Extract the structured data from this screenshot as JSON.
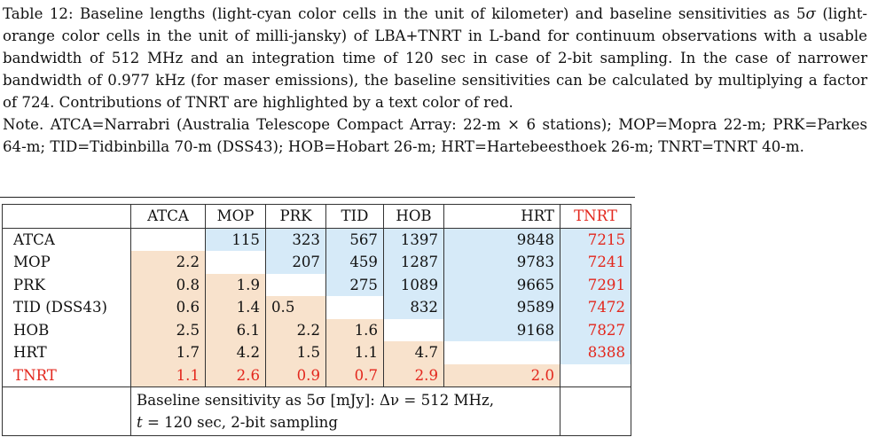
{
  "caption": {
    "label": "Table 12:",
    "text_1": " Baseline lengths (light-cyan color cells in the unit of kilometer) and baseline sensitivities as 5",
    "sigma": "σ",
    "text_2": " (light-orange color cells in the unit of milli-jansky) of LBA+TNRT in L-band for continuum observations with a usable bandwidth of 512 MHz and an integration time of 120 sec in case of 2-bit sampling. In the case of narrower bandwidth of 0.977 kHz (for maser emissions), the baseline sensitivities can be calculated by multiplying a factor of 724. Contributions of TNRT are highlighted by a text color of red.",
    "note": "Note. ATCA=Narrabri (Australia Telescope Compact Array: 22-m × 6 stations); MOP=Mopra 22-m; PRK=Parkes 64-m; TID=Tidbinbilla 70-m (DSS43); HOB=Hobart 26-m; HRT=Hartebeesthoek 26-m; TNRT=TNRT 40-m."
  },
  "table": {
    "columns": [
      "ATCA",
      "MOP",
      "PRK",
      "TID",
      "HOB",
      "HRT",
      "TNRT"
    ],
    "rows": [
      {
        "label": "ATCA",
        "cells": [
          "",
          "115",
          "323",
          "567",
          "1397",
          "9848",
          "7215"
        ]
      },
      {
        "label": "MOP",
        "cells": [
          "2.2",
          "",
          "207",
          "459",
          "1287",
          "9783",
          "7241"
        ]
      },
      {
        "label": "PRK",
        "cells": [
          "0.8",
          "1.9",
          "",
          "275",
          "1089",
          "9665",
          "7291"
        ]
      },
      {
        "label": "TID (DSS43)",
        "cells": [
          "0.6",
          "1.4",
          "0.5",
          "",
          "832",
          "9589",
          "7472"
        ]
      },
      {
        "label": "HOB",
        "cells": [
          "2.5",
          "6.1",
          "2.2",
          "1.6",
          "",
          "9168",
          "7827"
        ]
      },
      {
        "label": "HRT",
        "cells": [
          "1.7",
          "4.2",
          "1.5",
          "1.1",
          "4.7",
          "",
          "8388"
        ]
      },
      {
        "label": "TNRT",
        "cells": [
          "1.1",
          "2.6",
          "0.9",
          "0.7",
          "2.9",
          "2.0",
          ""
        ]
      }
    ],
    "footnote_line1": "Baseline sensitivity as 5σ [mJy]: Δν = 512 MHz,",
    "footnote_t": "t",
    "footnote_line2": " = 120 sec, 2-bit sampling"
  },
  "colors": {
    "cyan_cell": "#d6eaf8",
    "orange_cell": "#f8e2cc",
    "tnrt_red": "#e3271d"
  }
}
